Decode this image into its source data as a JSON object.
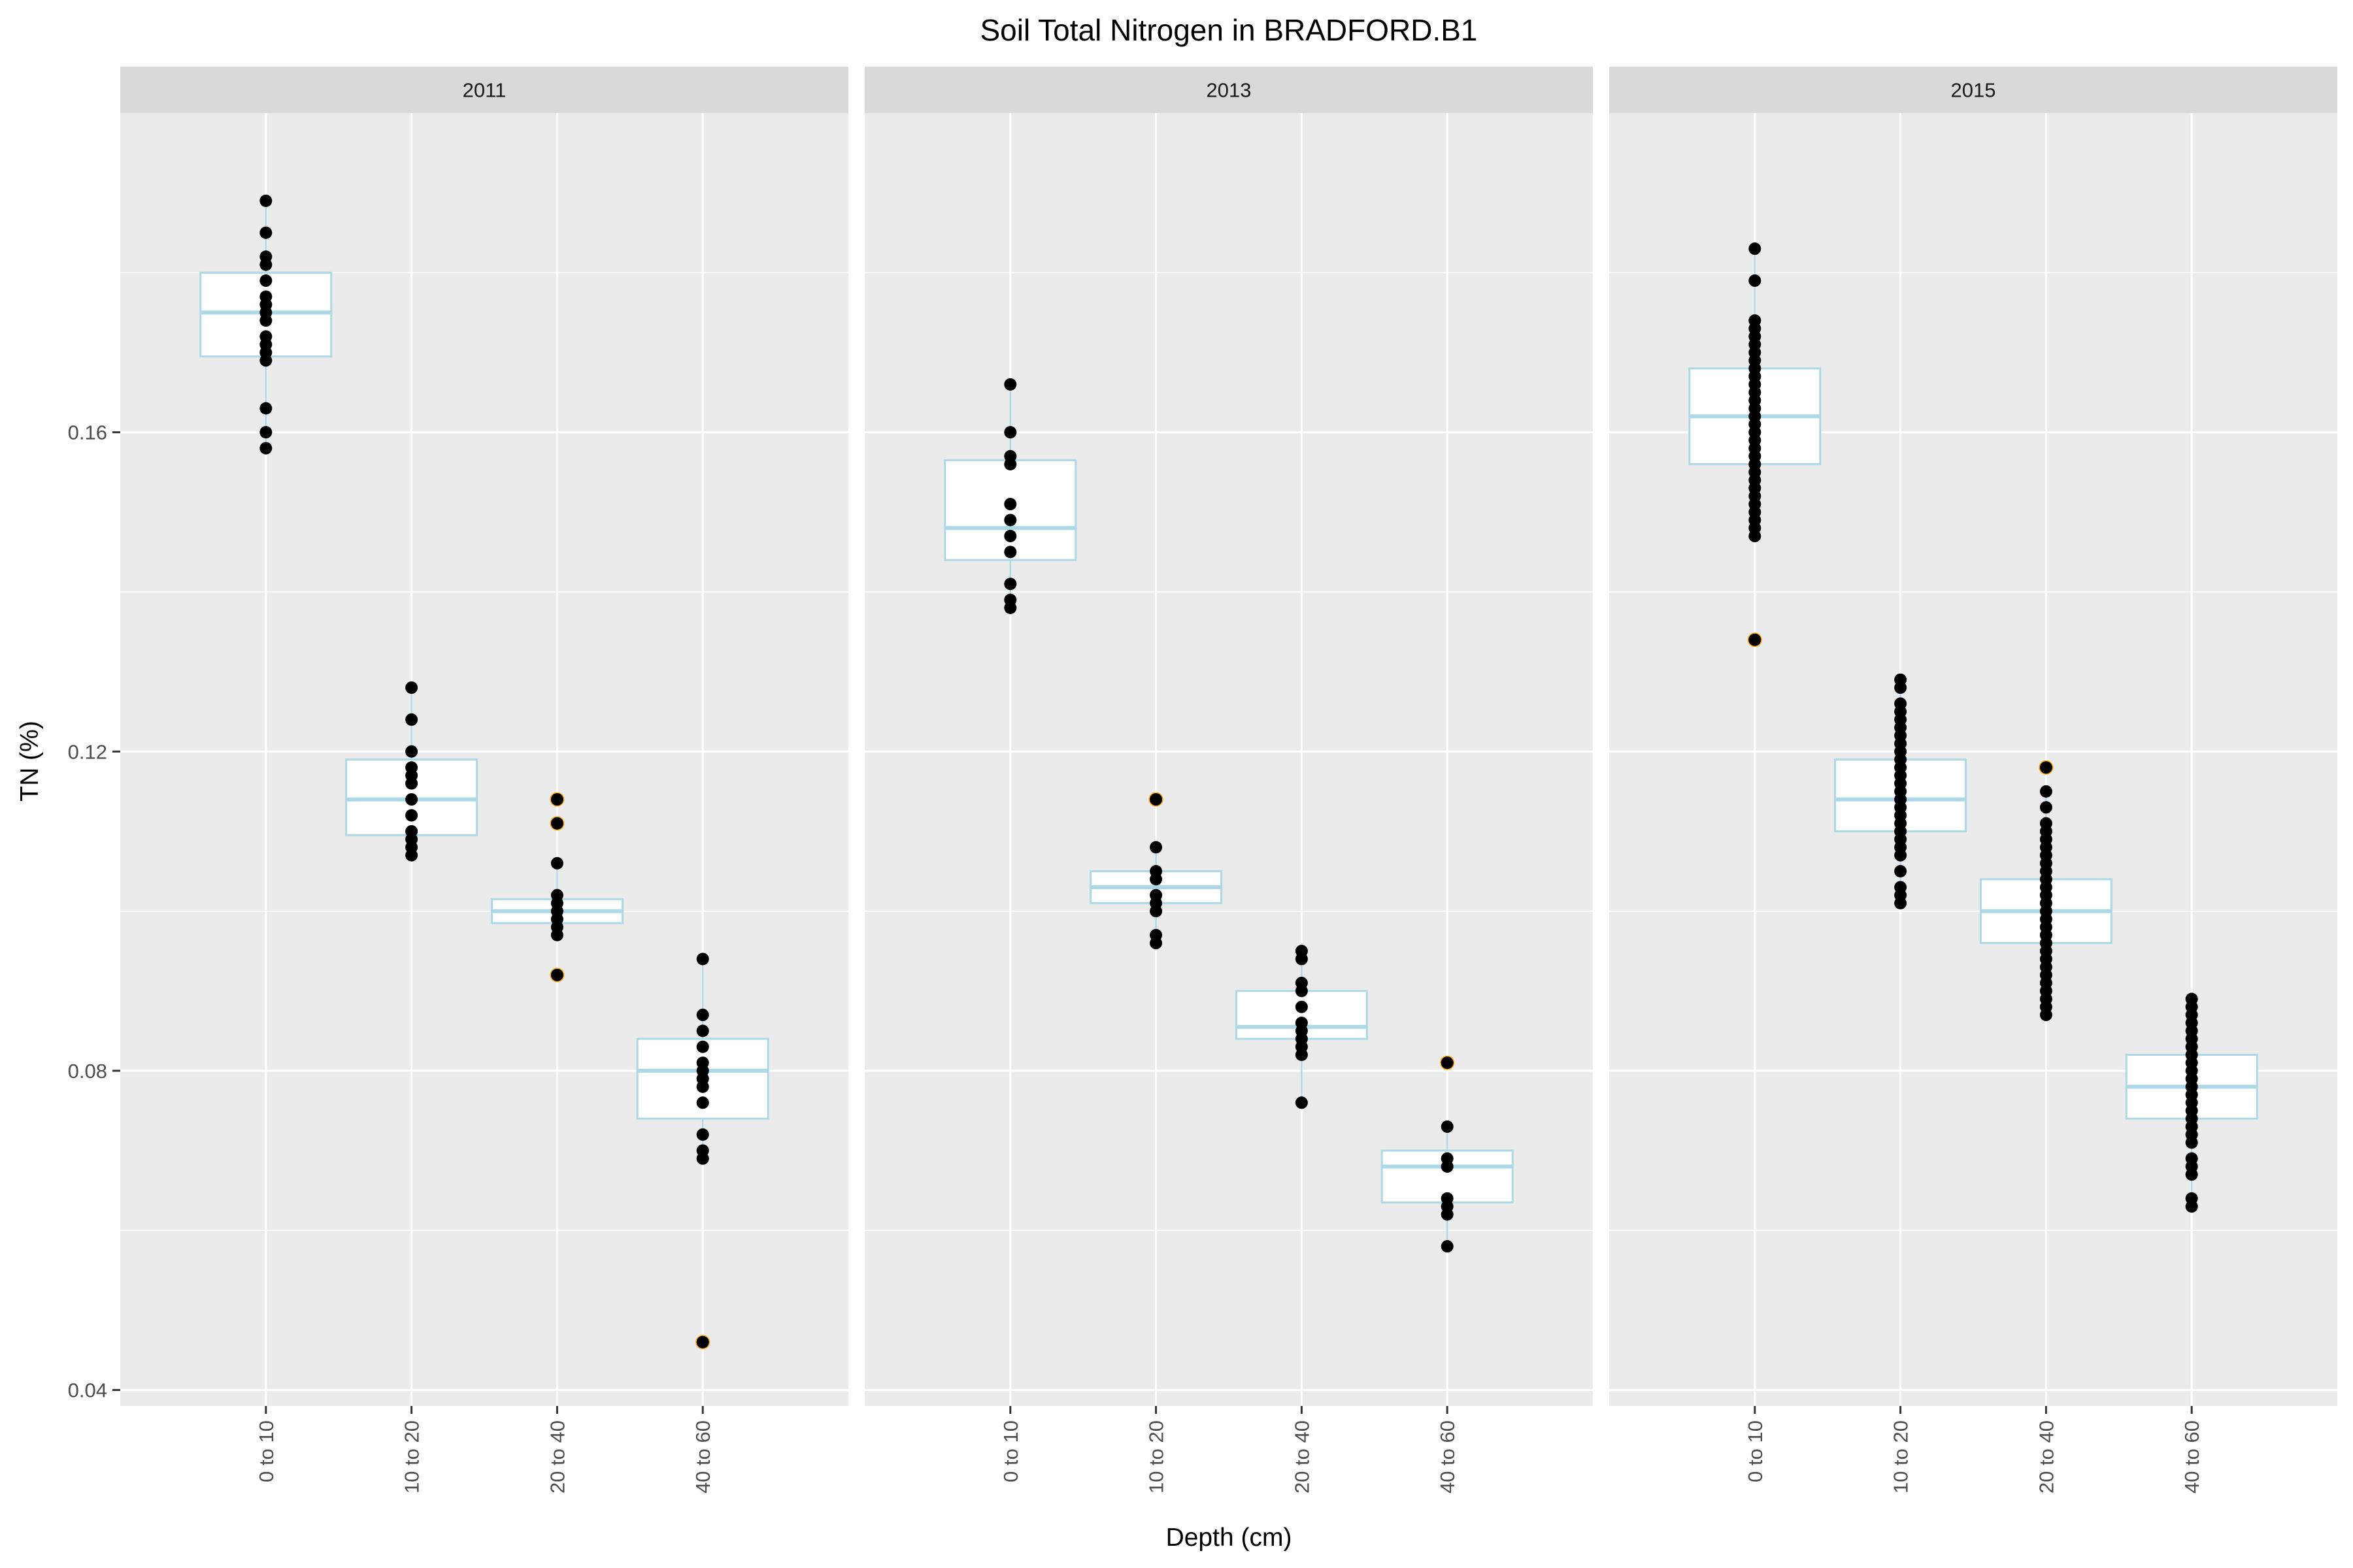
{
  "chart_data": {
    "type": "box",
    "title": "Soil Total Nitrogen in BRADFORD.B1",
    "xlabel": "Depth (cm)",
    "ylabel": "TN (%)",
    "categories": [
      "0 to 10",
      "10 to 20",
      "20 to 40",
      "40 to 60"
    ],
    "ylim": [
      0.038,
      0.2
    ],
    "yticks": [
      0.04,
      0.08,
      0.12,
      0.16
    ],
    "ytick_labels": [
      "0.04",
      "0.08",
      "0.12",
      "0.16"
    ],
    "grid": true,
    "legend": "none",
    "colors": {
      "panel_background": "#ebebeb",
      "strip_background": "#d9d9d9",
      "grid": "#ffffff",
      "box_outline": "#add8e6",
      "box_fill": "#ffffff",
      "point": "#000000",
      "outlier_outline": "#ffa500"
    },
    "panels": [
      {
        "label": "2011",
        "boxes": [
          {
            "category": "0 to 10",
            "q1": 0.1695,
            "median": 0.175,
            "q3": 0.18,
            "whisker_low": 0.158,
            "whisker_high": 0.189,
            "points": [
              0.189,
              0.185,
              0.182,
              0.181,
              0.179,
              0.177,
              0.176,
              0.175,
              0.174,
              0.172,
              0.171,
              0.17,
              0.169,
              0.163,
              0.16,
              0.158
            ],
            "outliers": []
          },
          {
            "category": "10 to 20",
            "q1": 0.1095,
            "median": 0.114,
            "q3": 0.119,
            "whisker_low": 0.107,
            "whisker_high": 0.128,
            "points": [
              0.128,
              0.124,
              0.12,
              0.118,
              0.117,
              0.116,
              0.114,
              0.112,
              0.11,
              0.109,
              0.108,
              0.107
            ],
            "outliers": []
          },
          {
            "category": "20 to 40",
            "q1": 0.0985,
            "median": 0.1,
            "q3": 0.1015,
            "whisker_low": 0.097,
            "whisker_high": 0.106,
            "points": [
              0.106,
              0.102,
              0.101,
              0.1,
              0.099,
              0.098,
              0.097
            ],
            "outliers": [
              0.114,
              0.111,
              0.092
            ]
          },
          {
            "category": "40 to 60",
            "q1": 0.074,
            "median": 0.08,
            "q3": 0.084,
            "whisker_low": 0.069,
            "whisker_high": 0.094,
            "points": [
              0.094,
              0.087,
              0.085,
              0.083,
              0.081,
              0.08,
              0.079,
              0.078,
              0.076,
              0.072,
              0.07,
              0.069
            ],
            "outliers": [
              0.046
            ]
          }
        ]
      },
      {
        "label": "2013",
        "boxes": [
          {
            "category": "0 to 10",
            "q1": 0.144,
            "median": 0.148,
            "q3": 0.1565,
            "whisker_low": 0.138,
            "whisker_high": 0.166,
            "points": [
              0.166,
              0.16,
              0.157,
              0.156,
              0.151,
              0.149,
              0.147,
              0.145,
              0.141,
              0.139,
              0.138
            ],
            "outliers": []
          },
          {
            "category": "10 to 20",
            "q1": 0.101,
            "median": 0.103,
            "q3": 0.105,
            "whisker_low": 0.096,
            "whisker_high": 0.108,
            "points": [
              0.108,
              0.105,
              0.104,
              0.102,
              0.101,
              0.1,
              0.097,
              0.096
            ],
            "outliers": [
              0.114
            ]
          },
          {
            "category": "20 to 40",
            "q1": 0.084,
            "median": 0.0855,
            "q3": 0.09,
            "whisker_low": 0.076,
            "whisker_high": 0.095,
            "points": [
              0.095,
              0.094,
              0.091,
              0.09,
              0.088,
              0.086,
              0.085,
              0.084,
              0.083,
              0.082,
              0.076
            ],
            "outliers": []
          },
          {
            "category": "40 to 60",
            "q1": 0.0635,
            "median": 0.068,
            "q3": 0.07,
            "whisker_low": 0.058,
            "whisker_high": 0.073,
            "points": [
              0.073,
              0.069,
              0.068,
              0.064,
              0.063,
              0.062,
              0.058
            ],
            "outliers": [
              0.081
            ]
          }
        ]
      },
      {
        "label": "2015",
        "boxes": [
          {
            "category": "0 to 10",
            "q1": 0.156,
            "median": 0.162,
            "q3": 0.168,
            "whisker_low": 0.147,
            "whisker_high": 0.183,
            "points": [
              0.183,
              0.179,
              0.174,
              0.173,
              0.172,
              0.171,
              0.17,
              0.169,
              0.168,
              0.167,
              0.166,
              0.165,
              0.164,
              0.163,
              0.162,
              0.161,
              0.16,
              0.159,
              0.158,
              0.157,
              0.156,
              0.155,
              0.154,
              0.153,
              0.152,
              0.151,
              0.15,
              0.149,
              0.148,
              0.147
            ],
            "outliers": [
              0.134
            ]
          },
          {
            "category": "10 to 20",
            "q1": 0.11,
            "median": 0.114,
            "q3": 0.119,
            "whisker_low": 0.101,
            "whisker_high": 0.129,
            "points": [
              0.129,
              0.128,
              0.126,
              0.125,
              0.124,
              0.123,
              0.122,
              0.121,
              0.12,
              0.119,
              0.118,
              0.117,
              0.116,
              0.115,
              0.114,
              0.113,
              0.112,
              0.111,
              0.11,
              0.109,
              0.108,
              0.107,
              0.105,
              0.103,
              0.102,
              0.101
            ],
            "outliers": []
          },
          {
            "category": "20 to 40",
            "q1": 0.096,
            "median": 0.1,
            "q3": 0.104,
            "whisker_low": 0.087,
            "whisker_high": 0.115,
            "points": [
              0.115,
              0.113,
              0.111,
              0.11,
              0.109,
              0.108,
              0.107,
              0.106,
              0.105,
              0.104,
              0.103,
              0.102,
              0.101,
              0.1,
              0.099,
              0.098,
              0.097,
              0.096,
              0.095,
              0.094,
              0.093,
              0.092,
              0.091,
              0.09,
              0.089,
              0.088,
              0.087
            ],
            "outliers": [
              0.118
            ]
          },
          {
            "category": "40 to 60",
            "q1": 0.074,
            "median": 0.078,
            "q3": 0.082,
            "whisker_low": 0.063,
            "whisker_high": 0.089,
            "points": [
              0.089,
              0.088,
              0.087,
              0.086,
              0.085,
              0.084,
              0.083,
              0.082,
              0.081,
              0.08,
              0.079,
              0.078,
              0.077,
              0.076,
              0.075,
              0.074,
              0.073,
              0.072,
              0.071,
              0.069,
              0.068,
              0.067,
              0.064,
              0.063
            ],
            "outliers": []
          }
        ]
      }
    ]
  }
}
